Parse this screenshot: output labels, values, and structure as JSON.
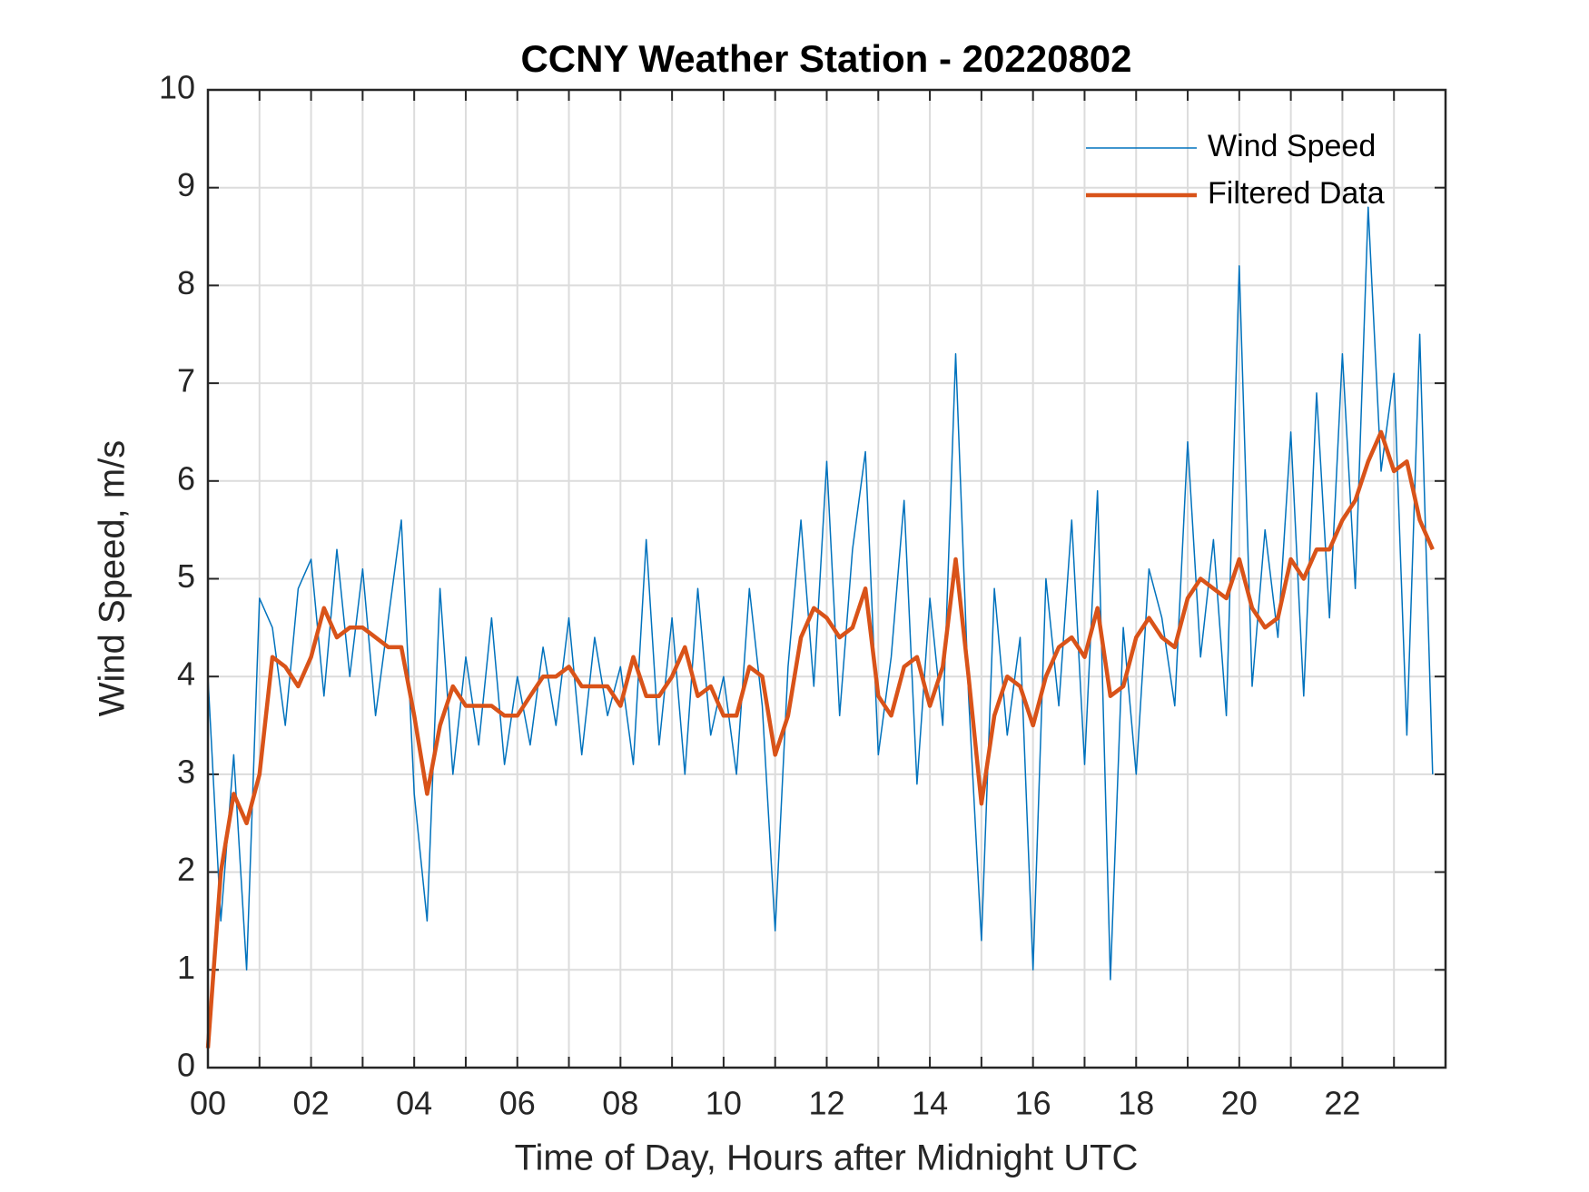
{
  "chart_data": {
    "type": "line",
    "title": "CCNY Weather Station - 20220802",
    "x_label": "Time of Day, Hours after Midnight UTC",
    "y_label": "Wind Speed, m/s",
    "x": [
      0,
      0.25,
      0.5,
      0.75,
      1,
      1.25,
      1.5,
      1.75,
      2,
      2.25,
      2.5,
      2.75,
      3,
      3.25,
      3.5,
      3.75,
      4,
      4.25,
      4.5,
      4.75,
      5,
      5.25,
      5.5,
      5.75,
      6,
      6.25,
      6.5,
      6.75,
      7,
      7.25,
      7.5,
      7.75,
      8,
      8.25,
      8.5,
      8.75,
      9,
      9.25,
      9.5,
      9.75,
      10,
      10.25,
      10.5,
      10.75,
      11,
      11.25,
      11.5,
      11.75,
      12,
      12.25,
      12.5,
      12.75,
      13,
      13.25,
      13.5,
      13.75,
      14,
      14.25,
      14.5,
      14.75,
      15,
      15.25,
      15.5,
      15.75,
      16,
      16.25,
      16.5,
      16.75,
      17,
      17.25,
      17.5,
      17.75,
      18,
      18.25,
      18.5,
      18.75,
      19,
      19.25,
      19.5,
      19.75,
      20,
      20.25,
      20.5,
      20.75,
      21,
      21.25,
      21.5,
      21.75,
      22,
      22.25,
      22.5,
      22.75,
      23,
      23.25,
      23.5,
      23.75
    ],
    "series": [
      {
        "name": "Wind Speed",
        "color": "#0072bd",
        "width": 1.5,
        "values": [
          4.0,
          1.5,
          3.2,
          1.0,
          4.8,
          4.5,
          3.5,
          4.9,
          5.2,
          3.8,
          5.3,
          4.0,
          5.1,
          3.6,
          4.6,
          5.6,
          2.8,
          1.5,
          4.9,
          3.0,
          4.2,
          3.3,
          4.6,
          3.1,
          4.0,
          3.3,
          4.3,
          3.5,
          4.6,
          3.2,
          4.4,
          3.6,
          4.1,
          3.1,
          5.4,
          3.3,
          4.6,
          3.0,
          4.9,
          3.4,
          4.0,
          3.0,
          4.9,
          3.7,
          1.4,
          4.1,
          5.6,
          3.9,
          6.2,
          3.6,
          5.3,
          6.3,
          3.2,
          4.2,
          5.8,
          2.9,
          4.8,
          3.5,
          7.3,
          3.8,
          1.3,
          4.9,
          3.4,
          4.4,
          1.0,
          5.0,
          3.7,
          5.6,
          3.1,
          5.9,
          0.9,
          4.5,
          3.0,
          5.1,
          4.6,
          3.7,
          6.4,
          4.2,
          5.4,
          3.6,
          8.2,
          3.9,
          5.5,
          4.4,
          6.5,
          3.8,
          6.9,
          4.6,
          7.3,
          4.9,
          8.8,
          6.1,
          7.1,
          3.4,
          7.5,
          3.0
        ]
      },
      {
        "name": "Filtered Data",
        "color": "#d95319",
        "width": 4.5,
        "values": [
          0.2,
          2.0,
          2.8,
          2.5,
          3.0,
          4.2,
          4.1,
          3.9,
          4.2,
          4.7,
          4.4,
          4.5,
          4.5,
          4.4,
          4.3,
          4.3,
          3.6,
          2.8,
          3.5,
          3.9,
          3.7,
          3.7,
          3.7,
          3.6,
          3.6,
          3.8,
          4.0,
          4.0,
          4.1,
          3.9,
          3.9,
          3.9,
          3.7,
          4.2,
          3.8,
          3.8,
          4.0,
          4.3,
          3.8,
          3.9,
          3.6,
          3.6,
          4.1,
          4.0,
          3.2,
          3.6,
          4.4,
          4.7,
          4.6,
          4.4,
          4.5,
          4.9,
          3.8,
          3.6,
          4.1,
          4.2,
          3.7,
          4.1,
          5.2,
          4.0,
          2.7,
          3.6,
          4.0,
          3.9,
          3.5,
          4.0,
          4.3,
          4.4,
          4.2,
          4.7,
          3.8,
          3.9,
          4.4,
          4.6,
          4.4,
          4.3,
          4.8,
          5.0,
          4.9,
          4.8,
          5.2,
          4.7,
          4.5,
          4.6,
          5.2,
          5.0,
          5.3,
          5.3,
          5.6,
          5.8,
          6.2,
          6.5,
          6.1,
          6.2,
          5.6,
          5.3
        ]
      }
    ],
    "xlim": [
      0,
      24
    ],
    "ylim": [
      0,
      10
    ],
    "xticks": [
      {
        "value": 0,
        "label": "00"
      },
      {
        "value": 2,
        "label": "02"
      },
      {
        "value": 4,
        "label": "04"
      },
      {
        "value": 6,
        "label": "06"
      },
      {
        "value": 8,
        "label": "08"
      },
      {
        "value": 10,
        "label": "10"
      },
      {
        "value": 12,
        "label": "12"
      },
      {
        "value": 14,
        "label": "14"
      },
      {
        "value": 16,
        "label": "16"
      },
      {
        "value": 18,
        "label": "18"
      },
      {
        "value": 20,
        "label": "20"
      },
      {
        "value": 22,
        "label": "22"
      }
    ],
    "xminor_ticks": [
      1,
      3,
      5,
      7,
      9,
      11,
      13,
      15,
      17,
      19,
      21,
      23
    ],
    "yticks": [
      0,
      1,
      2,
      3,
      4,
      5,
      6,
      7,
      8,
      9,
      10
    ],
    "grid": true,
    "legend": "northeast"
  }
}
